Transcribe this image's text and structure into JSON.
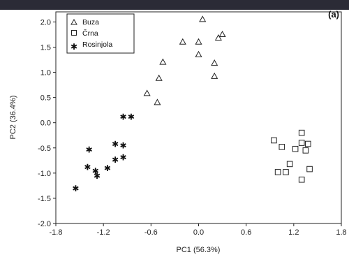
{
  "chart_data": {
    "type": "scatter",
    "panel_label": "(a)",
    "xlabel": "PC1 (56.3%)",
    "ylabel": "PC2 (36.4%)",
    "xlim": [
      -1.8,
      1.8
    ],
    "ylim": [
      -2.0,
      2.2
    ],
    "xticks": [
      "-1.8",
      "-1.2",
      "-0.6",
      "0.0",
      "0.6",
      "1.2",
      "1.8"
    ],
    "yticks": [
      "2.0",
      "1.5",
      "1.0",
      "0.5",
      "0.0",
      "-0.5",
      "-1.0",
      "-1.5",
      "-2.0"
    ],
    "grid": false,
    "legend_position": "top-left",
    "series": [
      {
        "name": "Buza",
        "marker": "triangle",
        "points": [
          [
            0.05,
            2.05
          ],
          [
            0.3,
            1.75
          ],
          [
            0.25,
            1.68
          ],
          [
            -0.2,
            1.6
          ],
          [
            0.0,
            1.6
          ],
          [
            0.0,
            1.35
          ],
          [
            -0.45,
            1.2
          ],
          [
            0.2,
            1.18
          ],
          [
            -0.5,
            0.88
          ],
          [
            0.2,
            0.92
          ],
          [
            -0.65,
            0.58
          ],
          [
            -0.52,
            0.4
          ]
        ]
      },
      {
        "name": "Črna",
        "marker": "square",
        "points": [
          [
            1.3,
            -0.2
          ],
          [
            0.95,
            -0.35
          ],
          [
            1.3,
            -0.4
          ],
          [
            1.38,
            -0.42
          ],
          [
            1.05,
            -0.48
          ],
          [
            1.22,
            -0.52
          ],
          [
            1.35,
            -0.55
          ],
          [
            1.15,
            -0.82
          ],
          [
            1.0,
            -0.98
          ],
          [
            1.1,
            -0.98
          ],
          [
            1.4,
            -0.92
          ],
          [
            1.3,
            -1.13
          ]
        ]
      },
      {
        "name": "Rosinjola",
        "marker": "star",
        "points": [
          [
            -0.95,
            0.12
          ],
          [
            -0.85,
            0.12
          ],
          [
            -1.05,
            -0.42
          ],
          [
            -0.95,
            -0.45
          ],
          [
            -1.38,
            -0.53
          ],
          [
            -0.95,
            -0.68
          ],
          [
            -1.05,
            -0.73
          ],
          [
            -1.4,
            -0.88
          ],
          [
            -1.15,
            -0.9
          ],
          [
            -1.3,
            -0.95
          ],
          [
            -1.28,
            -1.05
          ],
          [
            -1.55,
            -1.3
          ]
        ]
      }
    ]
  }
}
